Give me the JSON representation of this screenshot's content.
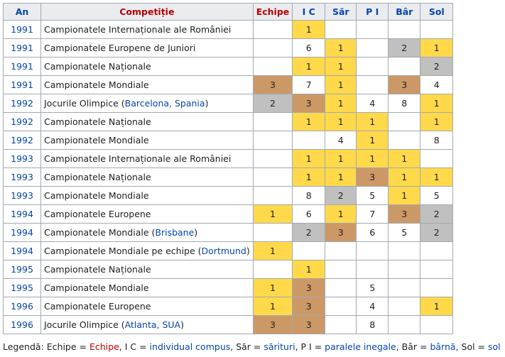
{
  "table": {
    "header": [
      {
        "text": "An",
        "link": "blue"
      },
      {
        "text": "Competiție",
        "link": "red"
      },
      {
        "text": "Echipe",
        "link": "red"
      },
      {
        "text": "I C",
        "link": "blue"
      },
      {
        "text": "Săr",
        "link": "blue"
      },
      {
        "text": "P I",
        "link": "blue"
      },
      {
        "text": "Bâr",
        "link": "blue"
      },
      {
        "text": "Sol",
        "link": "blue"
      }
    ],
    "medal_colors": {
      "1": "#ffd94a",
      "2": "#c0c0c0",
      "3": "#cc9966"
    },
    "rows": [
      {
        "year": "1991",
        "competition": [
          {
            "text": "Campionatele Internaționale ale României"
          }
        ],
        "results": [
          null,
          1,
          null,
          null,
          null,
          null
        ]
      },
      {
        "year": "1991",
        "competition": [
          {
            "text": "Campionatele Europene de Juniori"
          }
        ],
        "results": [
          null,
          6,
          1,
          null,
          2,
          1
        ]
      },
      {
        "year": "1991",
        "competition": [
          {
            "text": "Campionatele Naționale"
          }
        ],
        "results": [
          null,
          1,
          1,
          null,
          null,
          2
        ]
      },
      {
        "year": "1991",
        "competition": [
          {
            "text": "Campionatele Mondiale"
          }
        ],
        "results": [
          3,
          7,
          1,
          null,
          3,
          4
        ]
      },
      {
        "year": "1992",
        "competition": [
          {
            "text": "Jocurile Olimpice ("
          },
          {
            "text": "Barcelona, Spania",
            "link": "blue"
          },
          {
            "text": ")"
          }
        ],
        "results": [
          2,
          3,
          1,
          4,
          8,
          1
        ]
      },
      {
        "year": "1992",
        "competition": [
          {
            "text": "Campionatele Naționale"
          }
        ],
        "results": [
          null,
          1,
          1,
          1,
          null,
          1
        ]
      },
      {
        "year": "1992",
        "competition": [
          {
            "text": "Campionatele Mondiale"
          }
        ],
        "results": [
          null,
          null,
          4,
          1,
          null,
          8
        ]
      },
      {
        "year": "1993",
        "competition": [
          {
            "text": "Campionatele Internaționale ale României"
          }
        ],
        "results": [
          null,
          1,
          1,
          1,
          1,
          null
        ]
      },
      {
        "year": "1993",
        "competition": [
          {
            "text": "Campionatele Naționale"
          }
        ],
        "results": [
          null,
          1,
          1,
          3,
          1,
          1
        ]
      },
      {
        "year": "1993",
        "competition": [
          {
            "text": "Campionatele Mondiale"
          }
        ],
        "results": [
          null,
          8,
          2,
          5,
          1,
          5
        ]
      },
      {
        "year": "1994",
        "competition": [
          {
            "text": "Campionatele Europene"
          }
        ],
        "results": [
          1,
          6,
          1,
          7,
          3,
          2
        ]
      },
      {
        "year": "1994",
        "competition": [
          {
            "text": "Campionatele Mondiale ("
          },
          {
            "text": "Brisbane",
            "link": "blue"
          },
          {
            "text": ")"
          }
        ],
        "results": [
          null,
          2,
          3,
          6,
          5,
          2
        ]
      },
      {
        "year": "1994",
        "competition": [
          {
            "text": "Campionatele Mondiale pe echipe ("
          },
          {
            "text": "Dortmund",
            "link": "blue"
          },
          {
            "text": ")"
          }
        ],
        "results": [
          1,
          null,
          null,
          null,
          null,
          null
        ]
      },
      {
        "year": "1995",
        "competition": [
          {
            "text": "Campionatele Naționale"
          }
        ],
        "results": [
          null,
          1,
          null,
          null,
          null,
          null
        ]
      },
      {
        "year": "1995",
        "competition": [
          {
            "text": "Campionatele Mondiale"
          }
        ],
        "results": [
          1,
          3,
          null,
          5,
          null,
          null
        ]
      },
      {
        "year": "1996",
        "competition": [
          {
            "text": "Campionatele Europene"
          }
        ],
        "results": [
          1,
          3,
          null,
          4,
          null,
          1
        ]
      },
      {
        "year": "1996",
        "competition": [
          {
            "text": "Jocurile Olimpice ("
          },
          {
            "text": "Atlanta, SUA",
            "link": "blue"
          },
          {
            "text": ")"
          }
        ],
        "results": [
          3,
          3,
          null,
          8,
          null,
          null
        ]
      }
    ]
  },
  "legend": [
    {
      "text": "Legendă: Echipe = "
    },
    {
      "text": "Echipe",
      "link": "red"
    },
    {
      "text": ", I C = "
    },
    {
      "text": "individual compus",
      "link": "blue"
    },
    {
      "text": ", Săr = "
    },
    {
      "text": "sărituri",
      "link": "blue"
    },
    {
      "text": ", P I = "
    },
    {
      "text": "paralele inegale",
      "link": "blue"
    },
    {
      "text": ", Bâr = "
    },
    {
      "text": "bârnă",
      "link": "blue"
    },
    {
      "text": ", Sol = "
    },
    {
      "text": "sol",
      "link": "blue"
    }
  ]
}
